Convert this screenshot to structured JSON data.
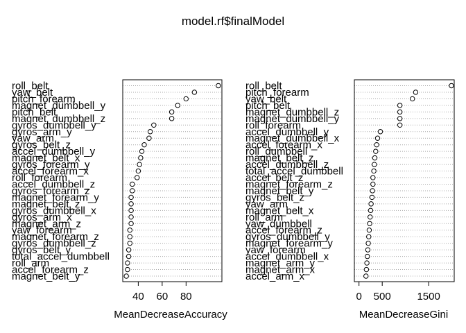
{
  "title": "model.rf$finalModel",
  "chart_data": [
    {
      "type": "scatter",
      "xlabel": "MeanDecreaseAccuracy",
      "xticks": [
        40,
        60,
        80
      ],
      "xlim": [
        27,
        110
      ],
      "grid": true,
      "labels": [
        "roll_belt",
        "yaw_belt",
        "pitch_forearm",
        "magnet_dumbbell_y",
        "pitch_belt",
        "magnet_dumbbell_z",
        "gyros_dumbbell_y",
        "gyros_arm_y",
        "yaw_arm",
        "gyros_belt_z",
        "accel_dumbbell_y",
        "magnet_belt_x",
        "gyros_forearm_y",
        "accel_forearm_x",
        "roll_forearm",
        "accel_dumbbell_z",
        "gyros_forearm_z",
        "magnet_forearm_y",
        "magnet_belt_z",
        "gyros_dumbbell_x",
        "gyros_arm_x",
        "magnet_arm_z",
        "yaw_forearm",
        "magnet_forearm_z",
        "gyros_dumbbell_z",
        "gyros_belt_y",
        "total_accel_dumbbell",
        "roll_arm",
        "accel_forearm_z",
        "magnet_belt_y"
      ],
      "values": [
        107,
        87,
        80,
        73,
        68,
        68,
        53,
        50,
        49,
        45,
        43,
        42,
        41,
        40,
        39,
        35,
        35,
        34,
        34,
        34,
        34,
        34,
        33,
        33,
        33,
        32,
        32,
        31,
        31,
        30
      ]
    },
    {
      "type": "scatter",
      "xlabel": "MeanDecreaseGini",
      "xticks": [
        0,
        500,
        1500
      ],
      "xlim": [
        -100,
        2050
      ],
      "grid": true,
      "labels": [
        "roll_belt",
        "pitch_forearm",
        "yaw_belt",
        "pitch_belt",
        "magnet_dumbbell_z",
        "magnet_dumbbell_y",
        "roll_forearm",
        "accel_dumbbell_y",
        "magnet_dumbbell_x",
        "accel_forearm_x",
        "roll_dumbbell",
        "magnet_belt_z",
        "accel_dumbbell_z",
        "total_accel_dumbbell",
        "accel_belt_z",
        "magnet_forearm_z",
        "magnet_belt_y",
        "gyros_belt_z",
        "yaw_arm",
        "magnet_belt_x",
        "roll_arm",
        "yaw_dumbbell",
        "accel_forearm_z",
        "gyros_dumbbell_y",
        "magnet_forearm_y",
        "yaw_forearm",
        "accel_dumbbell_x",
        "magnet_arm_y",
        "magnet_arm_x",
        "accel_arm_x"
      ],
      "values": [
        1990,
        1220,
        1150,
        880,
        880,
        880,
        880,
        460,
        400,
        380,
        360,
        340,
        330,
        320,
        300,
        300,
        290,
        280,
        260,
        250,
        240,
        230,
        220,
        210,
        200,
        190,
        180,
        170,
        160,
        150
      ]
    }
  ]
}
